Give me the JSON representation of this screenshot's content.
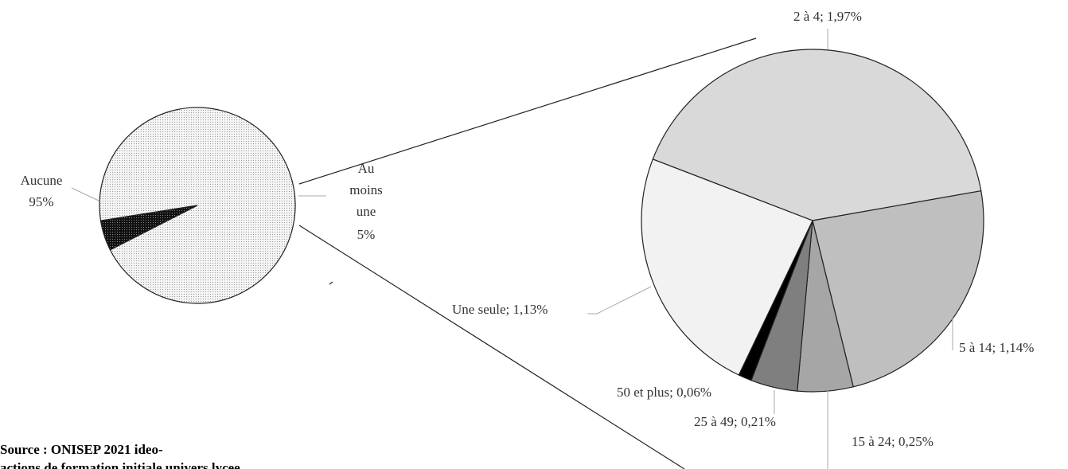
{
  "chart_data": [
    {
      "type": "pie",
      "categories": [
        "Aucune",
        "Au moins une"
      ],
      "values": [
        95,
        5
      ],
      "value_labels": [
        "95%",
        "5%"
      ],
      "colors": [
        "#e6e6e6",
        "#111111"
      ],
      "note": [
        "Source : ONISEP 2021 ideo-",
        "actions de formation initiale univers lycee"
      ]
    },
    {
      "type": "pie",
      "labels": [
        "2 à 4; 1,97%",
        "5 à 14; 1,14%",
        "15 à 24; 0,25%",
        "25 à 49; 0,21%",
        "50 et plus; 0,06%",
        "Une seule; 1,13%"
      ],
      "values": [
        1.97,
        1.14,
        0.25,
        0.21,
        0.06,
        1.13
      ],
      "colors": [
        "#d9d9d9",
        "#bfbfbf",
        "#a6a6a6",
        "#7f7f7f",
        "#000000",
        "#f2f2f2"
      ]
    }
  ]
}
